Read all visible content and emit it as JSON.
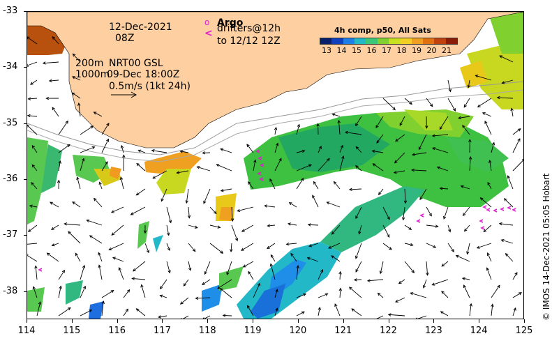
{
  "map": {
    "y_ticks": [
      "-33",
      "-34",
      "-35",
      "-36",
      "-37",
      "-38"
    ],
    "x_ticks": [
      "114",
      "115",
      "116",
      "117",
      "118",
      "119",
      "120",
      "121",
      "122",
      "123",
      "124",
      "125"
    ],
    "y_range_deg": [
      -38.5,
      -33
    ],
    "x_range_deg": [
      114,
      125
    ],
    "land_color": "#fdcfa1",
    "date_line1": "12-Dec-2021",
    "date_line2": "08Z",
    "isobath_200": "200m",
    "isobath_1000": "1000m",
    "gsl_label": "NRT00 GSL",
    "gsl_date": "09-Dec 18:00Z",
    "scale_label": "0.5m/s (1kt 24h)",
    "argo_marker": "o",
    "argo_label": "Argo",
    "drifter_marker": "<",
    "drifter_label": "drifters@12h",
    "drifter_until": "to 12/12 12Z",
    "marker_color": "#e020d0"
  },
  "colorbar": {
    "title": "4h comp, p50, All Sats",
    "labels": [
      "13",
      "14",
      "15",
      "16",
      "17",
      "18",
      "19",
      "20",
      "21"
    ],
    "colors": [
      "#08206b",
      "#1040c0",
      "#1e7ee8",
      "#22b8c8",
      "#3ac878",
      "#80d030",
      "#c8e020",
      "#f0d020",
      "#f0a020",
      "#e07010",
      "#c04010",
      "#8a1c08"
    ]
  },
  "credit": "© IMOS 14-Dec-2021 05:05 Hobart"
}
